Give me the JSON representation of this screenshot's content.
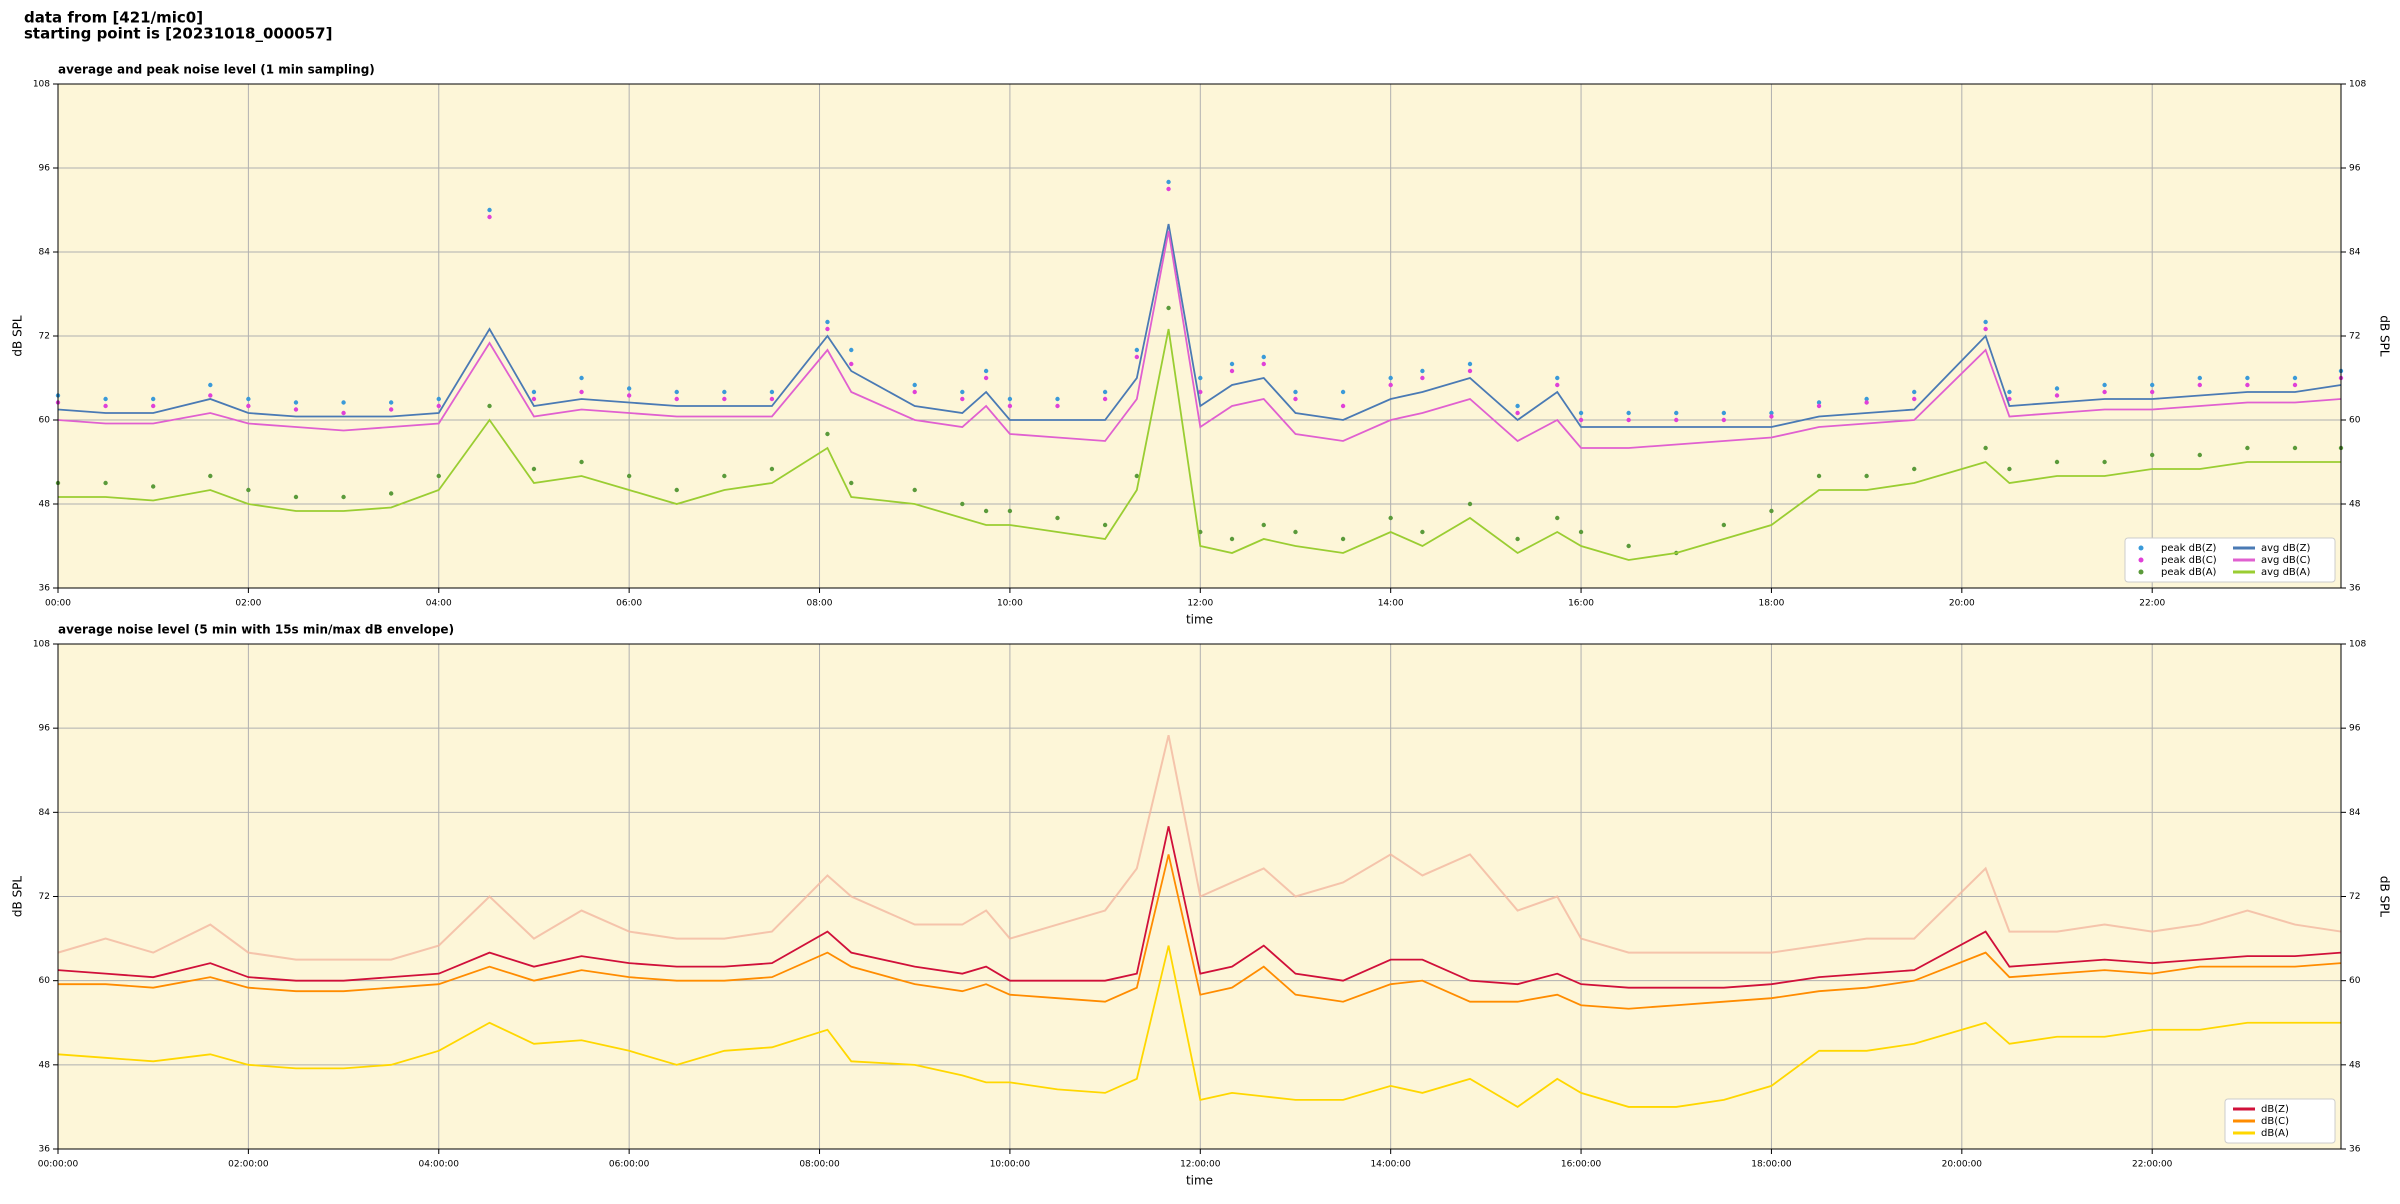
{
  "header": [
    "data from [421/mic0]",
    "starting point is [20231018_000057]"
  ],
  "chart_data": [
    {
      "type": "line",
      "title": "average and peak noise level (1 min sampling)",
      "xlabel": "time",
      "ylabel": "dB SPL",
      "background": "#fdf6d8",
      "grid": true,
      "legend": "lower right",
      "legend_columns": 2,
      "xlim": [
        "00:00",
        "23:59"
      ],
      "ylim": [
        36,
        108
      ],
      "yticks": [
        36,
        48,
        60,
        72,
        84,
        96,
        108
      ],
      "xticks": [
        "00:00",
        "02:00",
        "04:00",
        "06:00",
        "08:00",
        "10:00",
        "12:00",
        "14:00",
        "16:00",
        "18:00",
        "20:00",
        "22:00"
      ],
      "x": [
        "00:00",
        "00:30",
        "01:00",
        "01:36",
        "02:00",
        "02:30",
        "03:00",
        "03:30",
        "04:00",
        "04:32",
        "05:00",
        "05:30",
        "06:00",
        "06:30",
        "07:00",
        "07:30",
        "08:05",
        "08:20",
        "09:00",
        "09:30",
        "09:45",
        "10:00",
        "10:30",
        "11:00",
        "11:20",
        "11:40",
        "12:00",
        "12:20",
        "12:40",
        "13:00",
        "13:30",
        "14:00",
        "14:20",
        "14:50",
        "15:20",
        "15:45",
        "16:00",
        "16:30",
        "17:00",
        "17:30",
        "18:00",
        "18:30",
        "19:00",
        "19:30",
        "20:15",
        "20:30",
        "21:00",
        "21:30",
        "22:00",
        "22:30",
        "23:00",
        "23:30",
        "23:59"
      ],
      "series": [
        {
          "name": "peak dB(Z)",
          "type": "scatter",
          "color": "#3a9ad9",
          "values": [
            63.5,
            63,
            63,
            65,
            63,
            62.5,
            62.5,
            62.5,
            63,
            90,
            64,
            66,
            64.5,
            64,
            64,
            64,
            74,
            70,
            65,
            64,
            67,
            63,
            63,
            64,
            70,
            94,
            66,
            68,
            69,
            64,
            64,
            66,
            67,
            68,
            62,
            66,
            61,
            61,
            61,
            61,
            61,
            62.5,
            63,
            64,
            74,
            64,
            64.5,
            65,
            65,
            66,
            66,
            66,
            67
          ]
        },
        {
          "name": "peak dB(C)",
          "type": "scatter",
          "color": "#e040d8",
          "values": [
            62.5,
            62,
            62,
            63.5,
            62,
            61.5,
            61,
            61.5,
            62,
            89,
            63,
            64,
            63.5,
            63,
            63,
            63,
            73,
            68,
            64,
            63,
            66,
            62,
            62,
            63,
            69,
            93,
            64,
            67,
            68,
            63,
            62,
            65,
            66,
            67,
            61,
            65,
            60,
            60,
            60,
            60,
            60.5,
            62,
            62.5,
            63,
            73,
            63,
            63.5,
            64,
            64,
            65,
            65,
            65,
            66
          ]
        },
        {
          "name": "peak dB(A)",
          "type": "scatter",
          "color": "#5a9a3a",
          "values": [
            51,
            51,
            50.5,
            52,
            50,
            49,
            49,
            49.5,
            52,
            62,
            53,
            54,
            52,
            50,
            52,
            53,
            58,
            51,
            50,
            48,
            47,
            47,
            46,
            45,
            52,
            76,
            44,
            43,
            45,
            44,
            43,
            46,
            44,
            48,
            43,
            46,
            44,
            42,
            41,
            45,
            47,
            52,
            52,
            53,
            56,
            53,
            54,
            54,
            55,
            55,
            56,
            56,
            56
          ]
        },
        {
          "name": "avg dB(Z)",
          "type": "line",
          "color": "#4a7ab4",
          "values": [
            61.5,
            61,
            61,
            63,
            61,
            60.5,
            60.5,
            60.5,
            61,
            73,
            62,
            63,
            62.5,
            62,
            62,
            62,
            72,
            67,
            62,
            61,
            64,
            60,
            60,
            60,
            66,
            88,
            62,
            65,
            66,
            61,
            60,
            63,
            64,
            66,
            60,
            64,
            59,
            59,
            59,
            59,
            59,
            60.5,
            61,
            61.5,
            72,
            62,
            62.5,
            63,
            63,
            63.5,
            64,
            64,
            65
          ]
        },
        {
          "name": "avg dB(C)",
          "type": "line",
          "color": "#e060d0",
          "values": [
            60,
            59.5,
            59.5,
            61,
            59.5,
            59,
            58.5,
            59,
            59.5,
            71,
            60.5,
            61.5,
            61,
            60.5,
            60.5,
            60.5,
            70,
            64,
            60,
            59,
            62,
            58,
            57.5,
            57,
            63,
            87,
            59,
            62,
            63,
            58,
            57,
            60,
            61,
            63,
            57,
            60,
            56,
            56,
            56.5,
            57,
            57.5,
            59,
            59.5,
            60,
            70,
            60.5,
            61,
            61.5,
            61.5,
            62,
            62.5,
            62.5,
            63
          ]
        },
        {
          "name": "avg dB(A)",
          "type": "line",
          "color": "#9acd32",
          "values": [
            49,
            49,
            48.5,
            50,
            48,
            47,
            47,
            47.5,
            50,
            60,
            51,
            52,
            50,
            48,
            50,
            51,
            56,
            49,
            48,
            46,
            45,
            45,
            44,
            43,
            50,
            73,
            42,
            41,
            43,
            42,
            41,
            44,
            42,
            46,
            41,
            44,
            42,
            40,
            41,
            43,
            45,
            50,
            50,
            51,
            54,
            51,
            52,
            52,
            53,
            53,
            54,
            54,
            54
          ]
        }
      ]
    },
    {
      "type": "line",
      "title": "average noise level (5 min with 15s min/max dB envelope)",
      "xlabel": "time",
      "ylabel": "dB SPL",
      "background": "#fdf6d8",
      "grid": true,
      "legend": "lower right",
      "legend_columns": 1,
      "xlim": [
        "00:00:00",
        "23:59:00"
      ],
      "ylim": [
        36,
        108
      ],
      "yticks": [
        36,
        48,
        60,
        72,
        84,
        96,
        108
      ],
      "xticks": [
        "00:00:00",
        "02:00:00",
        "04:00:00",
        "06:00:00",
        "08:00:00",
        "10:00:00",
        "12:00:00",
        "14:00:00",
        "16:00:00",
        "18:00:00",
        "20:00:00",
        "22:00:00"
      ],
      "x": [
        "00:00:00",
        "00:30:00",
        "01:00:00",
        "01:36:00",
        "02:00:00",
        "02:30:00",
        "03:00:00",
        "03:30:00",
        "04:00:00",
        "04:32:00",
        "05:00:00",
        "05:30:00",
        "06:00:00",
        "06:30:00",
        "07:00:00",
        "07:30:00",
        "08:05:00",
        "08:20:00",
        "09:00:00",
        "09:30:00",
        "09:45:00",
        "10:00:00",
        "10:30:00",
        "11:00:00",
        "11:20:00",
        "11:40:00",
        "12:00:00",
        "12:20:00",
        "12:40:00",
        "13:00:00",
        "13:30:00",
        "14:00:00",
        "14:20:00",
        "14:50:00",
        "15:20:00",
        "15:45:00",
        "16:00:00",
        "16:30:00",
        "17:00:00",
        "17:30:00",
        "18:00:00",
        "18:30:00",
        "19:00:00",
        "19:30:00",
        "20:15:00",
        "20:30:00",
        "21:00:00",
        "21:30:00",
        "22:00:00",
        "22:30:00",
        "23:00:00",
        "23:30:00",
        "23:59:00"
      ],
      "envelope": {
        "color": "#f2b8a0",
        "values": [
          64,
          66,
          64,
          68,
          64,
          63,
          63,
          63,
          65,
          72,
          66,
          70,
          67,
          66,
          66,
          67,
          75,
          72,
          68,
          68,
          70,
          66,
          68,
          70,
          76,
          95,
          72,
          74,
          76,
          72,
          74,
          78,
          75,
          78,
          70,
          72,
          66,
          64,
          64,
          64,
          64,
          65,
          66,
          66,
          76,
          67,
          67,
          68,
          67,
          68,
          70,
          68,
          67
        ]
      },
      "series": [
        {
          "name": "dB(Z)",
          "type": "line",
          "color": "#d0103a",
          "values": [
            61.5,
            61,
            60.5,
            62.5,
            60.5,
            60,
            60,
            60.5,
            61,
            64,
            62,
            63.5,
            62.5,
            62,
            62,
            62.5,
            67,
            64,
            62,
            61,
            62,
            60,
            60,
            60,
            61,
            82,
            61,
            62,
            65,
            61,
            60,
            63,
            63,
            60,
            59.5,
            61,
            59.5,
            59,
            59,
            59,
            59.5,
            60.5,
            61,
            61.5,
            67,
            62,
            62.5,
            63,
            62.5,
            63,
            63.5,
            63.5,
            64
          ]
        },
        {
          "name": "dB(C)",
          "type": "line",
          "color": "#ff8c00",
          "values": [
            59.5,
            59.5,
            59,
            60.5,
            59,
            58.5,
            58.5,
            59,
            59.5,
            62,
            60,
            61.5,
            60.5,
            60,
            60,
            60.5,
            64,
            62,
            59.5,
            58.5,
            59.5,
            58,
            57.5,
            57,
            59,
            78,
            58,
            59,
            62,
            58,
            57,
            59.5,
            60,
            57,
            57,
            58,
            56.5,
            56,
            56.5,
            57,
            57.5,
            58.5,
            59,
            60,
            64,
            60.5,
            61,
            61.5,
            61,
            62,
            62,
            62,
            62.5
          ]
        },
        {
          "name": "dB(A)",
          "type": "line",
          "color": "#ffd700",
          "values": [
            49.5,
            49,
            48.5,
            49.5,
            48,
            47.5,
            47.5,
            48,
            50,
            54,
            51,
            51.5,
            50,
            48,
            50,
            50.5,
            53,
            48.5,
            48,
            46.5,
            45.5,
            45.5,
            44.5,
            44,
            46,
            65,
            43,
            44,
            43.5,
            43,
            43,
            45,
            44,
            46,
            42,
            46,
            44,
            42,
            42,
            43,
            45,
            50,
            50,
            51,
            54,
            51,
            52,
            52,
            53,
            53,
            54,
            54,
            54
          ]
        }
      ]
    }
  ]
}
